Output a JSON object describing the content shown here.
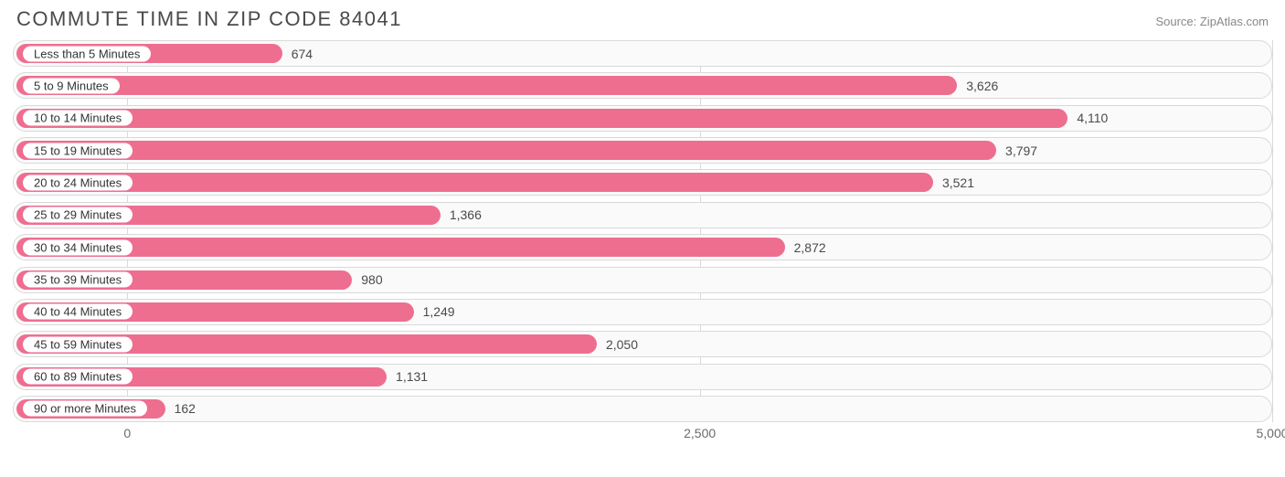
{
  "header": {
    "title": "COMMUTE TIME IN ZIP CODE 84041",
    "source": "Source: ZipAtlas.com"
  },
  "chart": {
    "type": "bar",
    "orientation": "horizontal",
    "background_color": "#ffffff",
    "row_bg": "#fafafa",
    "row_border": "#d9d9d9",
    "bar_color": "#ee6e90",
    "pill_bg": "#ffffff",
    "pill_text_color": "#333333",
    "value_text_color": "#4a4a4a",
    "grid_color": "#d9d9d9",
    "x_domain_min": -500,
    "x_domain_max": 5000,
    "x_ticks": [
      {
        "value": 0,
        "label": "0"
      },
      {
        "value": 2500,
        "label": "2,500"
      },
      {
        "value": 5000,
        "label": "5,000"
      }
    ],
    "label_fontsize": 13,
    "value_fontsize": 14,
    "tick_fontsize": 14,
    "bar_origin": -500,
    "rows": [
      {
        "label": "Less than 5 Minutes",
        "value": 674,
        "value_label": "674"
      },
      {
        "label": "5 to 9 Minutes",
        "value": 3626,
        "value_label": "3,626"
      },
      {
        "label": "10 to 14 Minutes",
        "value": 4110,
        "value_label": "4,110"
      },
      {
        "label": "15 to 19 Minutes",
        "value": 3797,
        "value_label": "3,797"
      },
      {
        "label": "20 to 24 Minutes",
        "value": 3521,
        "value_label": "3,521"
      },
      {
        "label": "25 to 29 Minutes",
        "value": 1366,
        "value_label": "1,366"
      },
      {
        "label": "30 to 34 Minutes",
        "value": 2872,
        "value_label": "2,872"
      },
      {
        "label": "35 to 39 Minutes",
        "value": 980,
        "value_label": "980"
      },
      {
        "label": "40 to 44 Minutes",
        "value": 1249,
        "value_label": "1,249"
      },
      {
        "label": "45 to 59 Minutes",
        "value": 2050,
        "value_label": "2,050"
      },
      {
        "label": "60 to 89 Minutes",
        "value": 1131,
        "value_label": "1,131"
      },
      {
        "label": "90 or more Minutes",
        "value": 162,
        "value_label": "162"
      }
    ]
  }
}
